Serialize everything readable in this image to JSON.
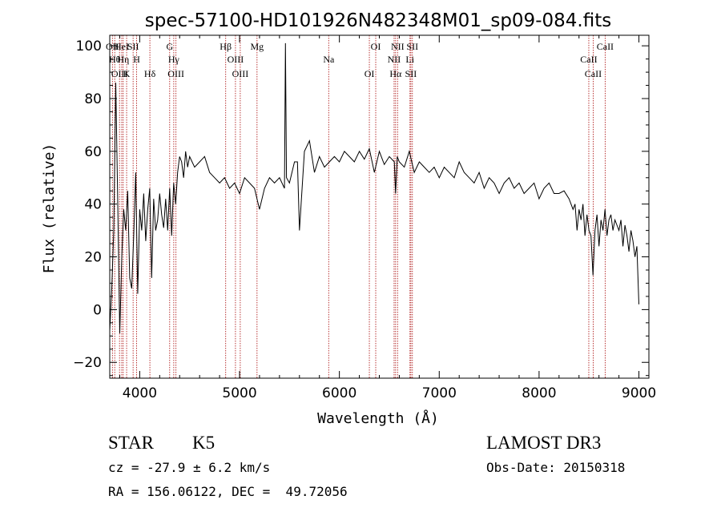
{
  "chart_data": {
    "type": "line",
    "title": "spec-57100-HD101926N482348M01_sp09-084.fits",
    "xlabel": "Wavelength (Å)",
    "ylabel": "Flux (relative)",
    "xlim": [
      3700,
      9100
    ],
    "ylim": [
      -26,
      104
    ],
    "x_ticks": [
      4000,
      5000,
      6000,
      7000,
      8000,
      9000
    ],
    "y_ticks": [
      -20,
      0,
      20,
      40,
      60,
      80,
      100
    ],
    "grid": false,
    "legend": "none",
    "spectrum_color": "#000000",
    "line_marker_color": "#b22222",
    "line_markers": [
      {
        "wavelength": 3727,
        "label": "OII"
      },
      {
        "wavelength": 3750,
        "label": "Hθ"
      },
      {
        "wavelength": 3798,
        "label": "OIII"
      },
      {
        "wavelength": 3820,
        "label": "HeI"
      },
      {
        "wavelength": 3835,
        "label": "Hη"
      },
      {
        "wavelength": 3869,
        "label": "K"
      },
      {
        "wavelength": 3934,
        "label": "SII"
      },
      {
        "wavelength": 3969,
        "label": "H"
      },
      {
        "wavelength": 4102,
        "label": "Hδ"
      },
      {
        "wavelength": 4300,
        "label": "G"
      },
      {
        "wavelength": 4341,
        "label": "Hγ"
      },
      {
        "wavelength": 4363,
        "label": "OIII"
      },
      {
        "wavelength": 4861,
        "label": "Hβ"
      },
      {
        "wavelength": 4959,
        "label": "OIII"
      },
      {
        "wavelength": 5007,
        "label": "OIII"
      },
      {
        "wavelength": 5175,
        "label": "Mg"
      },
      {
        "wavelength": 5893,
        "label": "Na"
      },
      {
        "wavelength": 6300,
        "label": "OI"
      },
      {
        "wavelength": 6364,
        "label": "OI"
      },
      {
        "wavelength": 6548,
        "label": "NII"
      },
      {
        "wavelength": 6563,
        "label": "Hα"
      },
      {
        "wavelength": 6583,
        "label": "NII"
      },
      {
        "wavelength": 6707,
        "label": "Li"
      },
      {
        "wavelength": 6716,
        "label": "SII"
      },
      {
        "wavelength": 6731,
        "label": "SII"
      },
      {
        "wavelength": 8498,
        "label": "CaII"
      },
      {
        "wavelength": 8542,
        "label": "CaII"
      },
      {
        "wavelength": 8662,
        "label": "CaII"
      }
    ],
    "series": [
      {
        "x": [
          3700,
          3720,
          3740,
          3760,
          3780,
          3800,
          3820,
          3840,
          3860,
          3880,
          3900,
          3920,
          3940,
          3960,
          3980,
          4000,
          4020,
          4040,
          4060,
          4080,
          4100,
          4120,
          4140,
          4160,
          4180,
          4200,
          4220,
          4240,
          4260,
          4280,
          4300,
          4320,
          4340,
          4360,
          4380,
          4400,
          4420,
          4440,
          4460,
          4480,
          4500,
          4550,
          4600,
          4650,
          4700,
          4750,
          4800,
          4850,
          4900,
          4950,
          5000,
          5050,
          5100,
          5150,
          5200,
          5250,
          5300,
          5350,
          5400,
          5450,
          5460,
          5470,
          5500,
          5550,
          5580,
          5600,
          5650,
          5700,
          5750,
          5800,
          5850,
          5900,
          5950,
          6000,
          6050,
          6100,
          6150,
          6200,
          6250,
          6300,
          6350,
          6400,
          6450,
          6500,
          6550,
          6563,
          6580,
          6600,
          6650,
          6700,
          6750,
          6800,
          6850,
          6900,
          6950,
          7000,
          7050,
          7100,
          7150,
          7200,
          7250,
          7300,
          7350,
          7400,
          7450,
          7500,
          7550,
          7600,
          7650,
          7700,
          7750,
          7800,
          7850,
          7900,
          7950,
          8000,
          8050,
          8100,
          8150,
          8200,
          8250,
          8300,
          8320,
          8340,
          8360,
          8380,
          8400,
          8420,
          8440,
          8460,
          8480,
          8500,
          8520,
          8540,
          8560,
          8580,
          8600,
          8620,
          8640,
          8660,
          8680,
          8700,
          8720,
          8740,
          8760,
          8780,
          8800,
          8820,
          8840,
          8860,
          8880,
          8900,
          8920,
          8940,
          8960,
          8980,
          9000
        ],
        "y": [
          -8,
          8,
          30,
          86,
          40,
          -9,
          20,
          38,
          30,
          45,
          12,
          8,
          28,
          52,
          6,
          38,
          30,
          44,
          26,
          38,
          46,
          12,
          42,
          30,
          34,
          44,
          36,
          31,
          42,
          30,
          46,
          28,
          48,
          40,
          52,
          58,
          56,
          50,
          60,
          54,
          58,
          54,
          56,
          58,
          52,
          50,
          48,
          50,
          46,
          48,
          44,
          50,
          48,
          46,
          38,
          46,
          50,
          48,
          50,
          46,
          101,
          50,
          48,
          56,
          56,
          30,
          60,
          64,
          52,
          58,
          54,
          56,
          58,
          56,
          60,
          58,
          56,
          60,
          57,
          61,
          52,
          60,
          55,
          58,
          56,
          44,
          58,
          56,
          54,
          60,
          52,
          56,
          54,
          52,
          54,
          50,
          54,
          52,
          50,
          56,
          52,
          50,
          48,
          52,
          46,
          50,
          48,
          44,
          48,
          50,
          46,
          48,
          44,
          46,
          48,
          42,
          46,
          48,
          44,
          44,
          45,
          42,
          40,
          38,
          40,
          30,
          38,
          34,
          40,
          28,
          36,
          30,
          28,
          13,
          30,
          36,
          24,
          34,
          30,
          38,
          28,
          34,
          36,
          30,
          34,
          32,
          30,
          34,
          24,
          32,
          28,
          22,
          30,
          26,
          20,
          24,
          2
        ]
      }
    ]
  },
  "info": {
    "object_class": "STAR",
    "subclass": "K5",
    "survey": "LAMOST DR3",
    "redshift": "cz = -27.9 ± 6.2 km/s",
    "obs_date": "Obs-Date: 20150318",
    "coords": "RA = 156.06122, DEC =  49.72056"
  }
}
